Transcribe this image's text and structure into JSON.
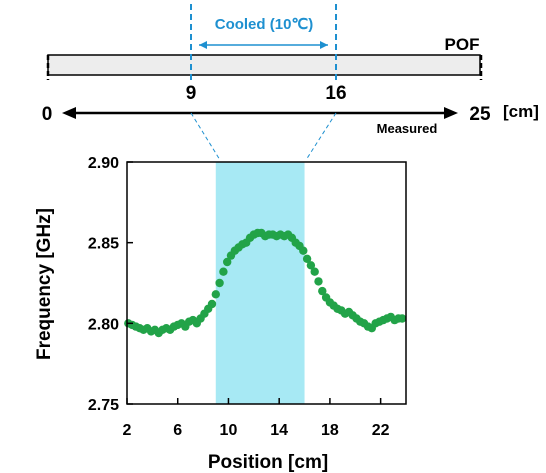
{
  "colors": {
    "dot": "#22A348",
    "shade": "#A7E9F4",
    "cool": "#1E90D0",
    "fiber_fill": "#EDEDED",
    "ink": "#000000"
  },
  "schematic": {
    "cooled_label": "Cooled (10℃)",
    "fiber_label": "POF",
    "pos_start": "0",
    "pos_cool_start": "9",
    "pos_cool_end": "16",
    "pos_end": "25",
    "unit": "[cm]",
    "measured_label": "Measured"
  },
  "chart_data": {
    "type": "scatter",
    "title": "",
    "xlabel": "Position [cm]",
    "ylabel": "Frequency [GHz]",
    "xlim": [
      2,
      24
    ],
    "ylim": [
      2.75,
      2.9
    ],
    "xticks": [
      2,
      6,
      10,
      14,
      18,
      22
    ],
    "yticks": [
      2.9,
      2.85,
      2.8,
      2.75
    ],
    "ytick_labels": [
      "2.90",
      "2.85",
      "2.80",
      "2.75"
    ],
    "shaded_region": [
      9,
      16
    ],
    "grid": false,
    "series": [
      {
        "x": [
          2.1,
          2.4,
          2.7,
          3.0,
          3.3,
          3.6,
          3.9,
          4.2,
          4.5,
          4.8,
          5.1,
          5.4,
          5.7,
          6.0,
          6.3,
          6.6,
          6.9,
          7.2,
          7.5,
          7.8,
          8.1,
          8.4,
          8.7,
          9.0,
          9.3,
          9.6,
          9.9,
          10.2,
          10.5,
          10.8,
          11.1,
          11.4,
          11.7,
          12.0,
          12.3,
          12.6,
          12.9,
          13.2,
          13.5,
          13.8,
          14.1,
          14.4,
          14.7,
          15.0,
          15.3,
          15.6,
          15.9,
          16.2,
          16.5,
          16.8,
          17.1,
          17.4,
          17.7,
          18.0,
          18.3,
          18.6,
          18.9,
          19.2,
          19.5,
          19.8,
          20.1,
          20.4,
          20.7,
          21.0,
          21.3,
          21.6,
          21.9,
          22.2,
          22.5,
          22.8,
          23.1,
          23.4,
          23.7
        ],
        "y": [
          2.8,
          2.799,
          2.798,
          2.797,
          2.796,
          2.797,
          2.795,
          2.796,
          2.794,
          2.796,
          2.797,
          2.796,
          2.798,
          2.799,
          2.8,
          2.798,
          2.801,
          2.802,
          2.8,
          2.803,
          2.806,
          2.809,
          2.812,
          2.818,
          2.825,
          2.832,
          2.838,
          2.842,
          2.845,
          2.847,
          2.849,
          2.85,
          2.853,
          2.855,
          2.856,
          2.856,
          2.854,
          2.855,
          2.855,
          2.854,
          2.855,
          2.854,
          2.855,
          2.853,
          2.85,
          2.848,
          2.845,
          2.84,
          2.836,
          2.832,
          2.826,
          2.82,
          2.816,
          2.813,
          2.811,
          2.809,
          2.808,
          2.806,
          2.807,
          2.805,
          2.803,
          2.801,
          2.8,
          2.798,
          2.797,
          2.8,
          2.801,
          2.802,
          2.803,
          2.804,
          2.802,
          2.803,
          2.803
        ]
      }
    ]
  }
}
